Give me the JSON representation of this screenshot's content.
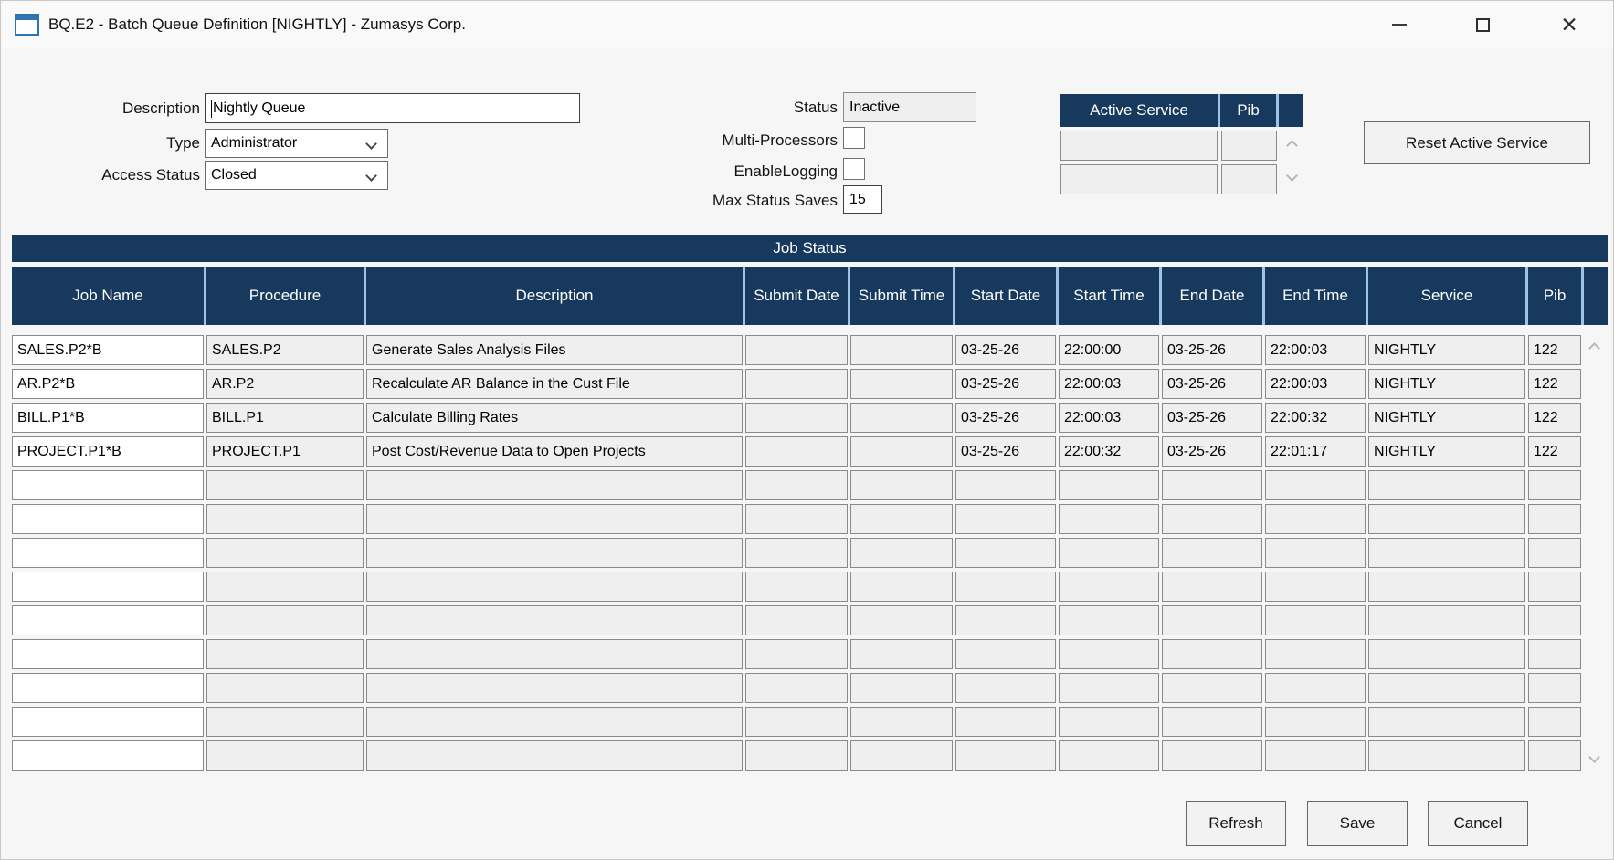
{
  "window": {
    "title": "BQ.E2 - Batch Queue Definition [NIGHTLY] - Zumasys Corp."
  },
  "form": {
    "description": {
      "label": "Description",
      "value": "Nightly Queue"
    },
    "type": {
      "label": "Type",
      "value": "Administrator"
    },
    "access_status": {
      "label": "Access Status",
      "value": "Closed"
    },
    "status": {
      "label": "Status",
      "value": "Inactive"
    },
    "multi_processors": {
      "label": "Multi-Processors",
      "checked": false
    },
    "enable_logging": {
      "label": "EnableLogging",
      "checked": false
    },
    "max_status_saves": {
      "label": "Max Status Saves",
      "value": "15"
    }
  },
  "active_service": {
    "columns": [
      "Active Service",
      "Pib"
    ],
    "rows": [
      [
        "",
        ""
      ],
      [
        "",
        ""
      ]
    ],
    "reset_button_label": "Reset Active Service"
  },
  "job_status": {
    "title": "Job Status",
    "columns": [
      "Job Name",
      "Procedure",
      "Description",
      "Submit Date",
      "Submit Time",
      "Start Date",
      "Start Time",
      "End Date",
      "End Time",
      "Service",
      "Pib"
    ],
    "rows": [
      [
        "SALES.P2*B",
        "SALES.P2",
        "Generate Sales Analysis Files",
        "",
        "",
        "03-25-26",
        "22:00:00",
        "03-25-26",
        "22:00:03",
        "NIGHTLY",
        "122"
      ],
      [
        "AR.P2*B",
        "AR.P2",
        "Recalculate AR Balance in the Cust File",
        "",
        "",
        "03-25-26",
        "22:00:03",
        "03-25-26",
        "22:00:03",
        "NIGHTLY",
        "122"
      ],
      [
        "BILL.P1*B",
        "BILL.P1",
        "Calculate Billing Rates",
        "",
        "",
        "03-25-26",
        "22:00:03",
        "03-25-26",
        "22:00:32",
        "NIGHTLY",
        "122"
      ],
      [
        "PROJECT.P1*B",
        "PROJECT.P1",
        "Post Cost/Revenue Data to Open Projects",
        "",
        "",
        "03-25-26",
        "22:00:32",
        "03-25-26",
        "22:01:17",
        "NIGHTLY",
        "122"
      ]
    ],
    "empty_row_count": 9
  },
  "footer": {
    "refresh_label": "Refresh",
    "save_label": "Save",
    "cancel_label": "Cancel"
  },
  "colors": {
    "header_navy": "#17395e",
    "header_divider": "#9dc3e6",
    "window_bg": "#f6f6f6",
    "cell_bg": "#efefef",
    "cell_border": "#8a8a8a"
  }
}
